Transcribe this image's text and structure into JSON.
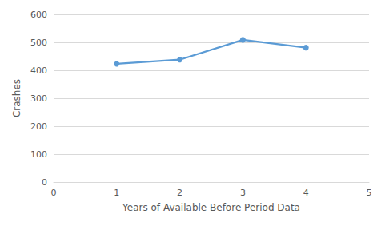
{
  "chart_data": {
    "type": "line",
    "x_label": "Years of Available Before Period Data",
    "y_label": "Crashes",
    "x": [
      1,
      2,
      3,
      4
    ],
    "values": [
      423,
      438,
      509,
      481
    ],
    "color": "#5b9bd5",
    "marker": "circle",
    "line_style": "solid",
    "xlim": [
      0,
      5
    ],
    "xticks": [
      0,
      1,
      2,
      3,
      4,
      5
    ],
    "ylim": [
      0,
      600
    ],
    "yticks": [
      0,
      100,
      200,
      300,
      400,
      500,
      600
    ],
    "grid": true
  }
}
